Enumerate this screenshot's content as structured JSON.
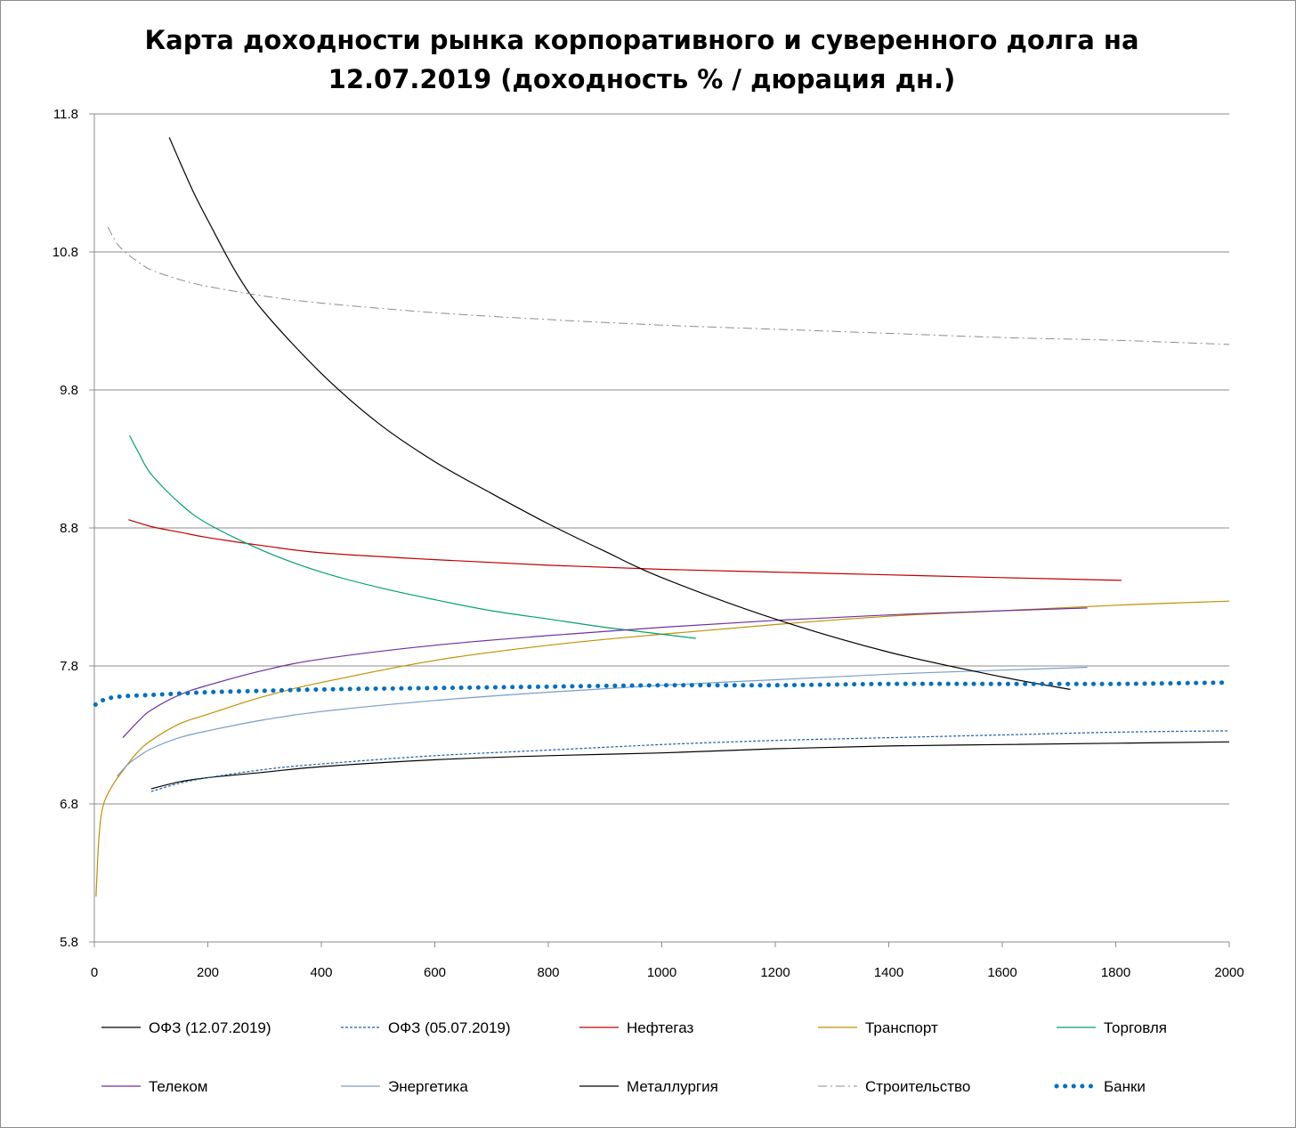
{
  "chart_data": {
    "type": "line",
    "title": "Карта доходности рынка корпоративного и суверенного долга на\n12.07.2019 (доходность % / дюрация дн.)",
    "xlabel": "",
    "ylabel": "",
    "xlim": [
      0,
      2000
    ],
    "ylim": [
      5.8,
      11.8
    ],
    "x_ticks": [
      "0",
      "200",
      "400",
      "600",
      "800",
      "1000",
      "1200",
      "1400",
      "1600",
      "1800",
      "2000"
    ],
    "y_ticks": [
      "5.8",
      "6.8",
      "7.8",
      "8.8",
      "9.8",
      "10.8",
      "11.8"
    ],
    "grid": "horizontal",
    "legend_position": "bottom",
    "series": [
      {
        "name": "ОФЗ (12.07.2019)",
        "color": "#000000",
        "dash": "solid",
        "width": 1.2,
        "points": [
          [
            100,
            6.91
          ],
          [
            150,
            6.96
          ],
          [
            200,
            6.99
          ],
          [
            300,
            7.03
          ],
          [
            400,
            7.07
          ],
          [
            600,
            7.12
          ],
          [
            800,
            7.15
          ],
          [
            1000,
            7.17
          ],
          [
            1200,
            7.2
          ],
          [
            1400,
            7.22
          ],
          [
            1600,
            7.23
          ],
          [
            1800,
            7.24
          ],
          [
            2000,
            7.25
          ]
        ]
      },
      {
        "name": "ОФЗ (05.07.2019)",
        "color": "#1f5fa8",
        "dash": "dotted",
        "width": 1.2,
        "points": [
          [
            100,
            6.89
          ],
          [
            150,
            6.95
          ],
          [
            200,
            6.99
          ],
          [
            300,
            7.05
          ],
          [
            400,
            7.09
          ],
          [
            600,
            7.15
          ],
          [
            800,
            7.19
          ],
          [
            1000,
            7.23
          ],
          [
            1200,
            7.26
          ],
          [
            1400,
            7.28
          ],
          [
            1600,
            7.3
          ],
          [
            1800,
            7.32
          ],
          [
            2000,
            7.33
          ]
        ]
      },
      {
        "name": "Нефтегаз",
        "color": "#c00000",
        "dash": "solid",
        "width": 1.2,
        "points": [
          [
            60,
            8.86
          ],
          [
            100,
            8.81
          ],
          [
            150,
            8.77
          ],
          [
            200,
            8.73
          ],
          [
            300,
            8.67
          ],
          [
            400,
            8.62
          ],
          [
            600,
            8.57
          ],
          [
            800,
            8.53
          ],
          [
            1000,
            8.5
          ],
          [
            1200,
            8.48
          ],
          [
            1400,
            8.46
          ],
          [
            1600,
            8.44
          ],
          [
            1810,
            8.42
          ]
        ]
      },
      {
        "name": "Транспорт",
        "color": "#c09000",
        "dash": "solid",
        "width": 1.2,
        "points": [
          [
            3,
            6.13
          ],
          [
            8,
            6.55
          ],
          [
            15,
            6.78
          ],
          [
            30,
            6.92
          ],
          [
            50,
            7.04
          ],
          [
            75,
            7.17
          ],
          [
            100,
            7.26
          ],
          [
            150,
            7.38
          ],
          [
            200,
            7.45
          ],
          [
            300,
            7.58
          ],
          [
            400,
            7.68
          ],
          [
            600,
            7.84
          ],
          [
            800,
            7.95
          ],
          [
            1000,
            8.03
          ],
          [
            1200,
            8.1
          ],
          [
            1400,
            8.16
          ],
          [
            1600,
            8.2
          ],
          [
            1800,
            8.24
          ],
          [
            2000,
            8.27
          ]
        ]
      },
      {
        "name": "Торговля",
        "color": "#00a070",
        "dash": "solid",
        "width": 1.2,
        "points": [
          [
            62,
            9.47
          ],
          [
            80,
            9.33
          ],
          [
            100,
            9.19
          ],
          [
            150,
            8.98
          ],
          [
            200,
            8.83
          ],
          [
            300,
            8.63
          ],
          [
            400,
            8.48
          ],
          [
            500,
            8.37
          ],
          [
            600,
            8.28
          ],
          [
            700,
            8.2
          ],
          [
            800,
            8.14
          ],
          [
            900,
            8.08
          ],
          [
            1000,
            8.03
          ],
          [
            1060,
            8.0
          ]
        ]
      },
      {
        "name": "Телеком",
        "color": "#7030a0",
        "dash": "solid",
        "width": 1.2,
        "points": [
          [
            50,
            7.28
          ],
          [
            80,
            7.41
          ],
          [
            100,
            7.48
          ],
          [
            150,
            7.59
          ],
          [
            200,
            7.66
          ],
          [
            300,
            7.77
          ],
          [
            400,
            7.85
          ],
          [
            600,
            7.95
          ],
          [
            800,
            8.02
          ],
          [
            1000,
            8.08
          ],
          [
            1200,
            8.13
          ],
          [
            1400,
            8.17
          ],
          [
            1600,
            8.2
          ],
          [
            1750,
            8.22
          ]
        ]
      },
      {
        "name": "Энергетика",
        "color": "#7a9cc6",
        "dash": "solid",
        "width": 1.2,
        "points": [
          [
            40,
            7.0
          ],
          [
            60,
            7.09
          ],
          [
            80,
            7.15
          ],
          [
            100,
            7.2
          ],
          [
            150,
            7.28
          ],
          [
            200,
            7.33
          ],
          [
            300,
            7.41
          ],
          [
            400,
            7.47
          ],
          [
            600,
            7.55
          ],
          [
            800,
            7.61
          ],
          [
            1000,
            7.66
          ],
          [
            1200,
            7.7
          ],
          [
            1400,
            7.74
          ],
          [
            1600,
            7.77
          ],
          [
            1750,
            7.79
          ]
        ]
      },
      {
        "name": "Металлургия",
        "color": "#000000",
        "dash": "solid",
        "width": 1.2,
        "points": [
          [
            132,
            11.63
          ],
          [
            150,
            11.46
          ],
          [
            175,
            11.23
          ],
          [
            200,
            11.03
          ],
          [
            250,
            10.65
          ],
          [
            300,
            10.36
          ],
          [
            400,
            9.92
          ],
          [
            500,
            9.56
          ],
          [
            600,
            9.28
          ],
          [
            700,
            9.05
          ],
          [
            800,
            8.83
          ],
          [
            900,
            8.63
          ],
          [
            1000,
            8.44
          ],
          [
            1200,
            8.14
          ],
          [
            1400,
            7.9
          ],
          [
            1600,
            7.72
          ],
          [
            1720,
            7.63
          ]
        ]
      },
      {
        "name": "Строительство",
        "color": "#8c8c8c",
        "dash": "dashdot",
        "width": 1.0,
        "points": [
          [
            24,
            10.98
          ],
          [
            40,
            10.86
          ],
          [
            60,
            10.78
          ],
          [
            80,
            10.72
          ],
          [
            100,
            10.67
          ],
          [
            150,
            10.6
          ],
          [
            200,
            10.55
          ],
          [
            300,
            10.48
          ],
          [
            400,
            10.43
          ],
          [
            600,
            10.36
          ],
          [
            800,
            10.31
          ],
          [
            1000,
            10.27
          ],
          [
            1200,
            10.24
          ],
          [
            1400,
            10.21
          ],
          [
            1600,
            10.18
          ],
          [
            1800,
            10.16
          ],
          [
            2000,
            10.13
          ]
        ]
      },
      {
        "name": "Банки",
        "color": "#0070c0",
        "dash": "dots",
        "width": 5,
        "points": [
          [
            2,
            7.52
          ],
          [
            20,
            7.56
          ],
          [
            50,
            7.58
          ],
          [
            100,
            7.59
          ],
          [
            150,
            7.6
          ],
          [
            200,
            7.61
          ],
          [
            300,
            7.62
          ],
          [
            400,
            7.63
          ],
          [
            600,
            7.64
          ],
          [
            800,
            7.65
          ],
          [
            1000,
            7.66
          ],
          [
            1200,
            7.66
          ],
          [
            1400,
            7.67
          ],
          [
            1600,
            7.67
          ],
          [
            1800,
            7.67
          ],
          [
            2000,
            7.68
          ]
        ]
      }
    ]
  }
}
